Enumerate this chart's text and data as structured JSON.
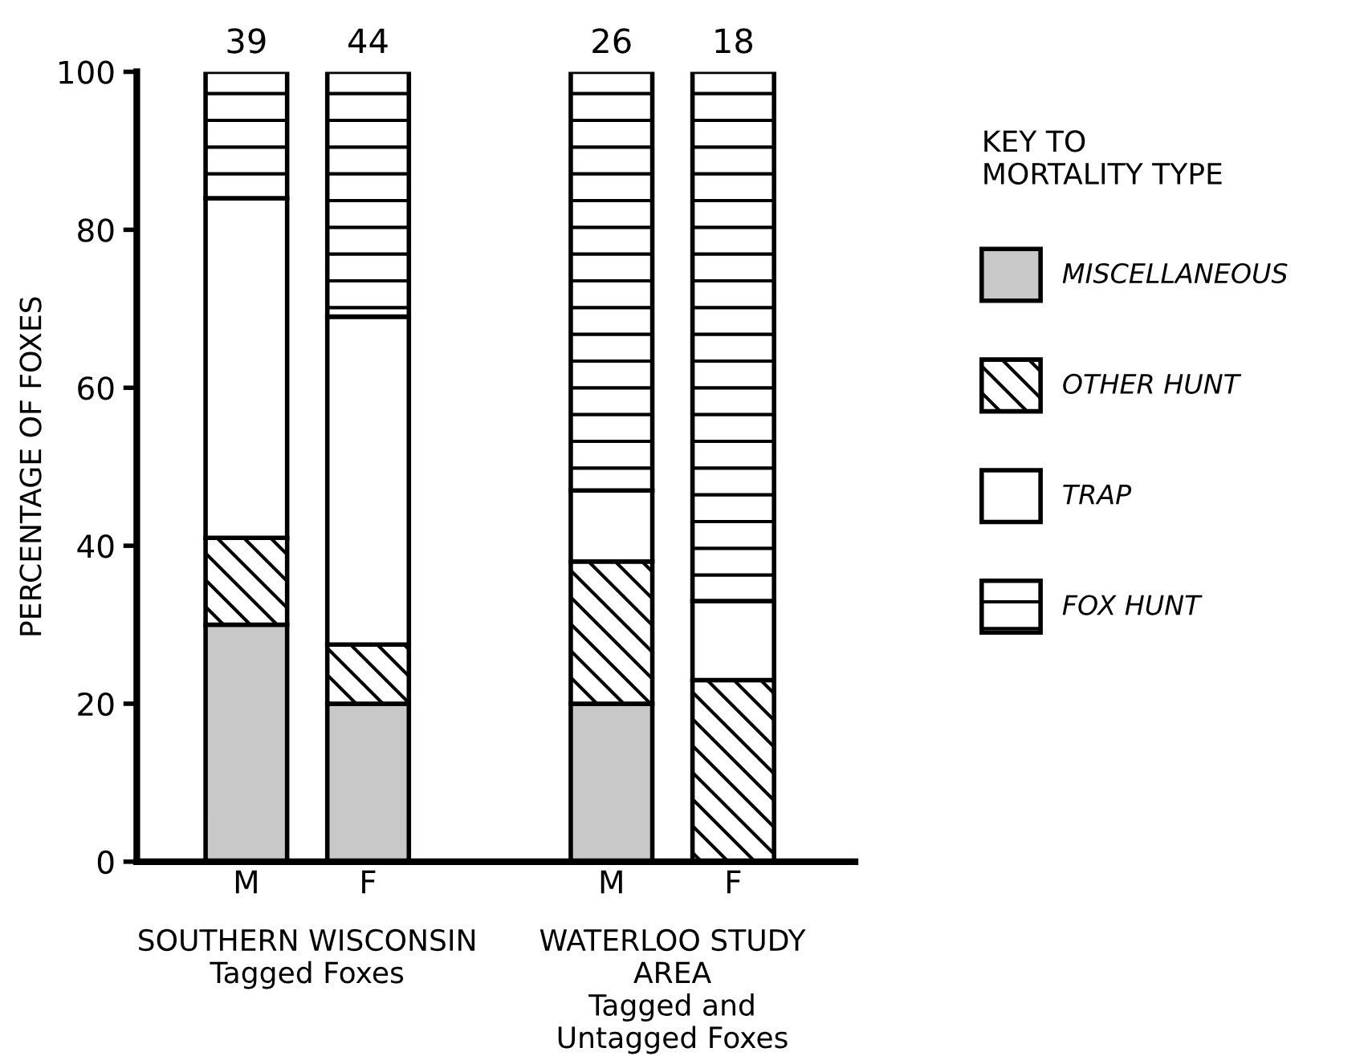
{
  "chart_data": {
    "type": "bar",
    "stacked": true,
    "categories": [
      "M",
      "F",
      null,
      "M",
      "F"
    ],
    "ylabel": "PERCENTAGE OF FOXES",
    "legend_title": "KEY TO\nMORTALITY TYPE",
    "legend": "right",
    "ylim": [
      0,
      100
    ],
    "yticks": [
      0,
      20,
      40,
      60,
      80,
      100
    ],
    "grid": false,
    "series": [
      {
        "name": "MISCELLANEOUS",
        "color": "#c8c8c8",
        "values": [
          30,
          20,
          null,
          20,
          0
        ]
      },
      {
        "name": "OTHER HUNT",
        "color": "#000000",
        "values": [
          11,
          7.5,
          null,
          18,
          23
        ]
      },
      {
        "name": "TRAP",
        "color": "#ffffff",
        "values": [
          43,
          41.5,
          null,
          9,
          10
        ]
      },
      {
        "name": "FOX HUNT",
        "color": "#000000",
        "values": [
          16,
          31,
          null,
          53,
          67
        ]
      }
    ],
    "annotations": [
      "39",
      "44",
      "26",
      "18",
      "SOUTHERN WISCONSIN\nTagged Foxes",
      "WATERLOO STUDY\nAREA\nTagged and\nUntagged Foxes"
    ]
  }
}
